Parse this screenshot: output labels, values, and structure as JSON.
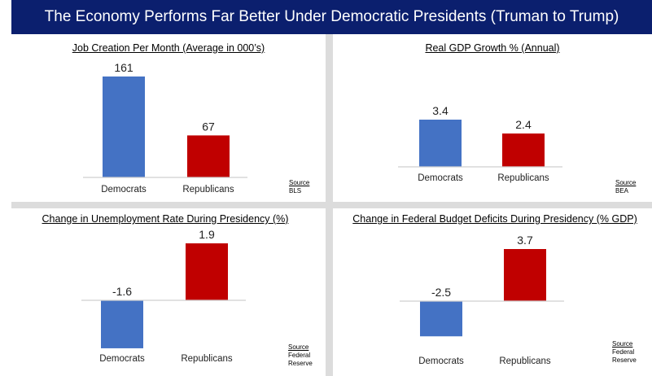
{
  "page_title": "The Economy Performs Far Better Under Democratic Presidents (Truman to Trump)",
  "colors": {
    "democrats": "#4472c4",
    "republicans": "#c00000",
    "banner": "#0b1f6e"
  },
  "chart_data": [
    {
      "id": "jobs",
      "type": "bar",
      "title": "Job Creation Per Month (Average in 000’s)",
      "categories": [
        "Democrats",
        "Republicans"
      ],
      "values": [
        161,
        67
      ],
      "data_labels": [
        "161",
        "67"
      ],
      "ylim": [
        0,
        161
      ],
      "grid": false,
      "source": {
        "label": "Source",
        "lines": [
          "BLS"
        ]
      }
    },
    {
      "id": "gdp",
      "type": "bar",
      "title": "Real GDP Growth % (Annual)",
      "categories": [
        "Democrats",
        "Republicans"
      ],
      "values": [
        3.4,
        2.4
      ],
      "data_labels": [
        "3.4",
        "2.4"
      ],
      "ylim": [
        0,
        3.4
      ],
      "grid": false,
      "source": {
        "label": "Source",
        "lines": [
          "BEA"
        ]
      }
    },
    {
      "id": "unemployment",
      "type": "bar",
      "title": "Change in Unemployment Rate During Presidency (%)",
      "categories": [
        "Democrats",
        "Republicans"
      ],
      "values": [
        -1.6,
        1.9
      ],
      "data_labels": [
        "-1.6",
        "1.9"
      ],
      "ylim": [
        -1.6,
        1.9
      ],
      "grid": false,
      "source": {
        "label": "Source",
        "lines": [
          "Federal",
          "Reserve"
        ]
      }
    },
    {
      "id": "deficits",
      "type": "bar",
      "title": "Change in Federal Budget Deficits During Presidency (% GDP)",
      "categories": [
        "Democrats",
        "Republicans"
      ],
      "values": [
        -2.5,
        3.7
      ],
      "data_labels": [
        "-2.5",
        "3.7"
      ],
      "ylim": [
        -2.5,
        3.7
      ],
      "grid": false,
      "source": {
        "label": "Source",
        "lines": [
          "Federal",
          "Reserve"
        ]
      }
    }
  ]
}
